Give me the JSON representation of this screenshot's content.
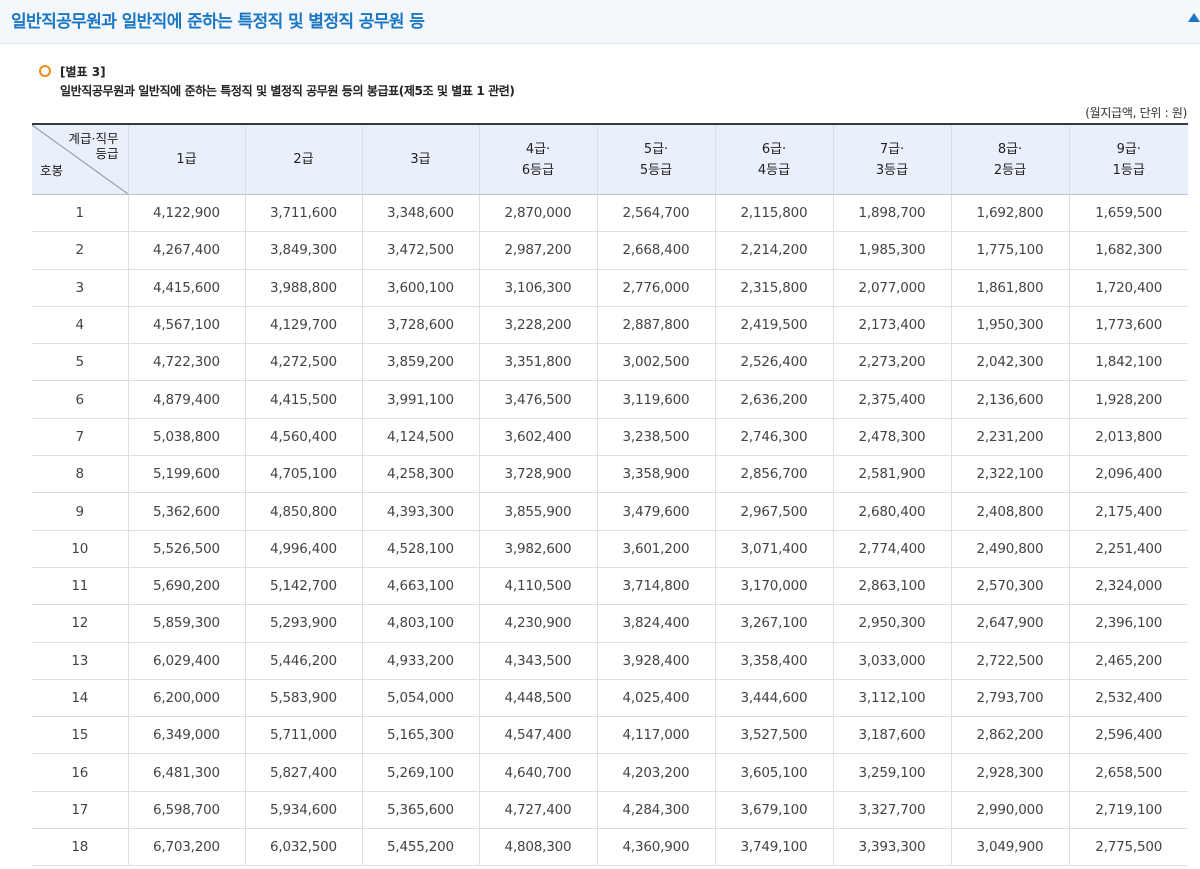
{
  "header": {
    "title": "일반직공무원과 일반직에 준하는 특정직 및 별정직 공무원 등"
  },
  "section": {
    "label": "[별표 3]",
    "subtitle": "일반직공무원과 일반직에 준하는 특정직 및 별정직 공무원 등의 봉급표(제5조 및 별표 1 관련)",
    "unit_note": "(월지급액, 단위 : 원)"
  },
  "table": {
    "corner_top_line1": "계급·직무",
    "corner_top_line2": "등급",
    "corner_bottom": "호봉",
    "columns": [
      {
        "line1": "1급",
        "line2": ""
      },
      {
        "line1": "2급",
        "line2": ""
      },
      {
        "line1": "3급",
        "line2": ""
      },
      {
        "line1": "4급·",
        "line2": "6등급"
      },
      {
        "line1": "5급·",
        "line2": "5등급"
      },
      {
        "line1": "6급·",
        "line2": "4등급"
      },
      {
        "line1": "7급·",
        "line2": "3등급"
      },
      {
        "line1": "8급·",
        "line2": "2등급"
      },
      {
        "line1": "9급·",
        "line2": "1등급"
      }
    ],
    "rows": [
      {
        "step": "1",
        "values": [
          "4,122,900",
          "3,711,600",
          "3,348,600",
          "2,870,000",
          "2,564,700",
          "2,115,800",
          "1,898,700",
          "1,692,800",
          "1,659,500"
        ]
      },
      {
        "step": "2",
        "values": [
          "4,267,400",
          "3,849,300",
          "3,472,500",
          "2,987,200",
          "2,668,400",
          "2,214,200",
          "1,985,300",
          "1,775,100",
          "1,682,300"
        ]
      },
      {
        "step": "3",
        "values": [
          "4,415,600",
          "3,988,800",
          "3,600,100",
          "3,106,300",
          "2,776,000",
          "2,315,800",
          "2,077,000",
          "1,861,800",
          "1,720,400"
        ]
      },
      {
        "step": "4",
        "values": [
          "4,567,100",
          "4,129,700",
          "3,728,600",
          "3,228,200",
          "2,887,800",
          "2,419,500",
          "2,173,400",
          "1,950,300",
          "1,773,600"
        ]
      },
      {
        "step": "5",
        "values": [
          "4,722,300",
          "4,272,500",
          "3,859,200",
          "3,351,800",
          "3,002,500",
          "2,526,400",
          "2,273,200",
          "2,042,300",
          "1,842,100"
        ]
      },
      {
        "step": "6",
        "values": [
          "4,879,400",
          "4,415,500",
          "3,991,100",
          "3,476,500",
          "3,119,600",
          "2,636,200",
          "2,375,400",
          "2,136,600",
          "1,928,200"
        ]
      },
      {
        "step": "7",
        "values": [
          "5,038,800",
          "4,560,400",
          "4,124,500",
          "3,602,400",
          "3,238,500",
          "2,746,300",
          "2,478,300",
          "2,231,200",
          "2,013,800"
        ]
      },
      {
        "step": "8",
        "values": [
          "5,199,600",
          "4,705,100",
          "4,258,300",
          "3,728,900",
          "3,358,900",
          "2,856,700",
          "2,581,900",
          "2,322,100",
          "2,096,400"
        ]
      },
      {
        "step": "9",
        "values": [
          "5,362,600",
          "4,850,800",
          "4,393,300",
          "3,855,900",
          "3,479,600",
          "2,967,500",
          "2,680,400",
          "2,408,800",
          "2,175,400"
        ]
      },
      {
        "step": "10",
        "values": [
          "5,526,500",
          "4,996,400",
          "4,528,100",
          "3,982,600",
          "3,601,200",
          "3,071,400",
          "2,774,400",
          "2,490,800",
          "2,251,400"
        ]
      },
      {
        "step": "11",
        "values": [
          "5,690,200",
          "5,142,700",
          "4,663,100",
          "4,110,500",
          "3,714,800",
          "3,170,000",
          "2,863,100",
          "2,570,300",
          "2,324,000"
        ]
      },
      {
        "step": "12",
        "values": [
          "5,859,300",
          "5,293,900",
          "4,803,100",
          "4,230,900",
          "3,824,400",
          "3,267,100",
          "2,950,300",
          "2,647,900",
          "2,396,100"
        ]
      },
      {
        "step": "13",
        "values": [
          "6,029,400",
          "5,446,200",
          "4,933,200",
          "4,343,500",
          "3,928,400",
          "3,358,400",
          "3,033,000",
          "2,722,500",
          "2,465,200"
        ]
      },
      {
        "step": "14",
        "values": [
          "6,200,000",
          "5,583,900",
          "5,054,000",
          "4,448,500",
          "4,025,400",
          "3,444,600",
          "3,112,100",
          "2,793,700",
          "2,532,400"
        ]
      },
      {
        "step": "15",
        "values": [
          "6,349,000",
          "5,711,000",
          "5,165,300",
          "4,547,400",
          "4,117,000",
          "3,527,500",
          "3,187,600",
          "2,862,200",
          "2,596,400"
        ]
      },
      {
        "step": "16",
        "values": [
          "6,481,300",
          "5,827,400",
          "5,269,100",
          "4,640,700",
          "4,203,200",
          "3,605,100",
          "3,259,100",
          "2,928,300",
          "2,658,500"
        ]
      },
      {
        "step": "17",
        "values": [
          "6,598,700",
          "5,934,600",
          "5,365,600",
          "4,727,400",
          "4,284,300",
          "3,679,100",
          "3,327,700",
          "2,990,000",
          "2,719,100"
        ]
      },
      {
        "step": "18",
        "values": [
          "6,703,200",
          "6,032,500",
          "5,455,200",
          "4,808,300",
          "4,360,900",
          "3,749,100",
          "3,393,300",
          "3,049,900",
          "2,775,500"
        ]
      }
    ]
  },
  "icons": {
    "bullet": "circle-bullet-icon",
    "scroll_up": "triangle-up-icon"
  },
  "colors": {
    "title_blue": "#1b77c4",
    "header_bg": "#e9f0fb",
    "bullet_orange": "#f08a1a"
  }
}
